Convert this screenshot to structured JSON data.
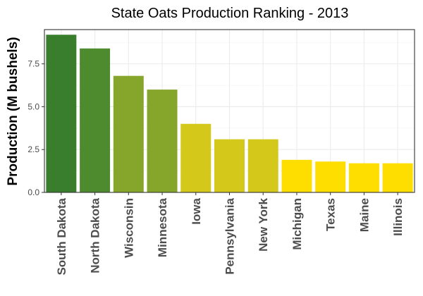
{
  "chart_data": {
    "type": "bar",
    "title": "State Oats Production Ranking - 2013",
    "xlabel": "",
    "ylabel": "Production (M bushels)",
    "ylim": [
      0,
      9.5
    ],
    "yticks": [
      0.0,
      2.5,
      5.0,
      7.5
    ],
    "ytick_labels": [
      "0.0",
      "2.5",
      "5.0",
      "7.5"
    ],
    "grid": true,
    "legend": "none",
    "categories": [
      "South Dakota",
      "North Dakota",
      "Wisconsin",
      "Minnesota",
      "Iowa",
      "Pennsylvania",
      "New York",
      "Michigan",
      "Texas",
      "Maine",
      "Illinois"
    ],
    "values": [
      9.2,
      8.4,
      6.8,
      6.0,
      4.0,
      3.1,
      3.1,
      1.9,
      1.8,
      1.7,
      1.7
    ],
    "colors": [
      "#387e2d",
      "#4e8a2e",
      "#86a62b",
      "#86a62b",
      "#d4c81b",
      "#d4c81b",
      "#d4c81b",
      "#fedd00",
      "#fedd00",
      "#fedd00",
      "#fedd00"
    ]
  }
}
